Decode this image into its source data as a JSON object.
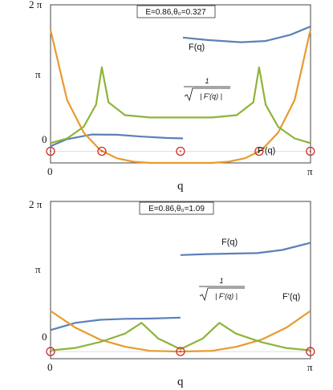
{
  "colors": {
    "F": "#5b80b8",
    "Fp": "#e89a2e",
    "inv": "#8db43a",
    "marker": "#d22b2b"
  },
  "chart_data": [
    {
      "type": "line",
      "param_label": "E=0.86,θ₀=0.327",
      "xlabel": "q",
      "xlim": [
        0,
        3.14159
      ],
      "ylim": [
        -0.5,
        6.28318
      ],
      "x_tick_labels": [
        "0",
        "π"
      ],
      "y_tick_labels": [
        "0",
        "π",
        "2 π"
      ],
      "labels": {
        "F": "F(q)",
        "Fp": "F'(q)",
        "inv_num": "1",
        "inv_den": "| F'(q) |"
      },
      "series": [
        {
          "name": "F(q)",
          "segments": [
            {
              "x": [
                0,
                0.2,
                0.5,
                0.8,
                1.1,
                1.4,
                1.6
              ],
              "y": [
                0.22,
                0.52,
                0.72,
                0.71,
                0.63,
                0.57,
                0.55
              ]
            },
            {
              "x": [
                1.6,
                1.9,
                2.3,
                2.6,
                2.9,
                3.14
              ],
              "y": [
                4.88,
                4.77,
                4.68,
                4.73,
                5.0,
                5.35
              ]
            }
          ]
        },
        {
          "name": "F'(q)",
          "x": [
            0,
            0.2,
            0.4,
            0.6,
            0.8,
            1.0,
            1.2,
            1.4,
            1.57,
            1.75,
            1.95,
            2.15,
            2.35,
            2.55,
            2.75,
            2.95,
            3.14
          ],
          "y": [
            5.2,
            2.2,
            0.8,
            0.05,
            -0.3,
            -0.45,
            -0.5,
            -0.52,
            -0.52,
            -0.52,
            -0.5,
            -0.45,
            -0.3,
            0.05,
            0.8,
            2.2,
            5.2
          ]
        },
        {
          "name": "1/sqrt|F'(q)|",
          "x": [
            0,
            0.2,
            0.4,
            0.55,
            0.62,
            0.7,
            0.9,
            1.2,
            1.57,
            1.95,
            2.25,
            2.45,
            2.52,
            2.6,
            2.75,
            2.95,
            3.14
          ],
          "y": [
            0.35,
            0.55,
            1.05,
            2.0,
            3.6,
            2.1,
            1.55,
            1.45,
            1.45,
            1.45,
            1.55,
            2.1,
            3.6,
            2.0,
            1.05,
            0.55,
            0.35
          ]
        }
      ],
      "markers": {
        "x": [
          0,
          0.62,
          1.57,
          2.52,
          3.14
        ],
        "y": [
          0,
          0,
          0,
          0,
          0
        ]
      }
    },
    {
      "type": "line",
      "param_label": "E=0.86,θ₀=1.09",
      "xlabel": "q",
      "xlim": [
        0,
        3.14159
      ],
      "ylim": [
        -0.3,
        6.28318
      ],
      "x_tick_labels": [
        "0",
        "π"
      ],
      "y_tick_labels": [
        "0",
        "π",
        "2 π"
      ],
      "labels": {
        "F": "F(q)",
        "Fp": "F'(q)",
        "inv_num": "1",
        "inv_den": "| F'(q) |"
      },
      "series": [
        {
          "name": "F(q)",
          "segments": [
            {
              "x": [
                0,
                0.3,
                0.6,
                0.9,
                1.2,
                1.57
              ],
              "y": [
                0.9,
                1.2,
                1.33,
                1.37,
                1.38,
                1.42
              ]
            },
            {
              "x": [
                1.57,
                1.9,
                2.2,
                2.5,
                2.8,
                3.14
              ],
              "y": [
                4.04,
                4.08,
                4.1,
                4.12,
                4.25,
                4.55
              ]
            }
          ]
        },
        {
          "name": "F'(q)",
          "x": [
            0,
            0.3,
            0.6,
            0.9,
            1.2,
            1.57,
            1.95,
            2.25,
            2.55,
            2.85,
            3.14
          ],
          "y": [
            1.7,
            1.0,
            0.5,
            0.2,
            0.03,
            0.0,
            0.03,
            0.2,
            0.5,
            1.0,
            1.7
          ]
        },
        {
          "name": "1/sqrt|F'(q)|",
          "x": [
            0,
            0.3,
            0.6,
            0.9,
            1.1,
            1.3,
            1.57,
            1.84,
            2.04,
            2.24,
            2.54,
            2.84,
            3.14
          ],
          "y": [
            0.05,
            0.15,
            0.4,
            0.75,
            1.2,
            0.55,
            0.1,
            0.55,
            1.2,
            0.75,
            0.4,
            0.15,
            0.05
          ]
        }
      ],
      "markers": {
        "x": [
          0,
          1.57,
          3.14
        ],
        "y": [
          0,
          0,
          0
        ]
      }
    }
  ]
}
